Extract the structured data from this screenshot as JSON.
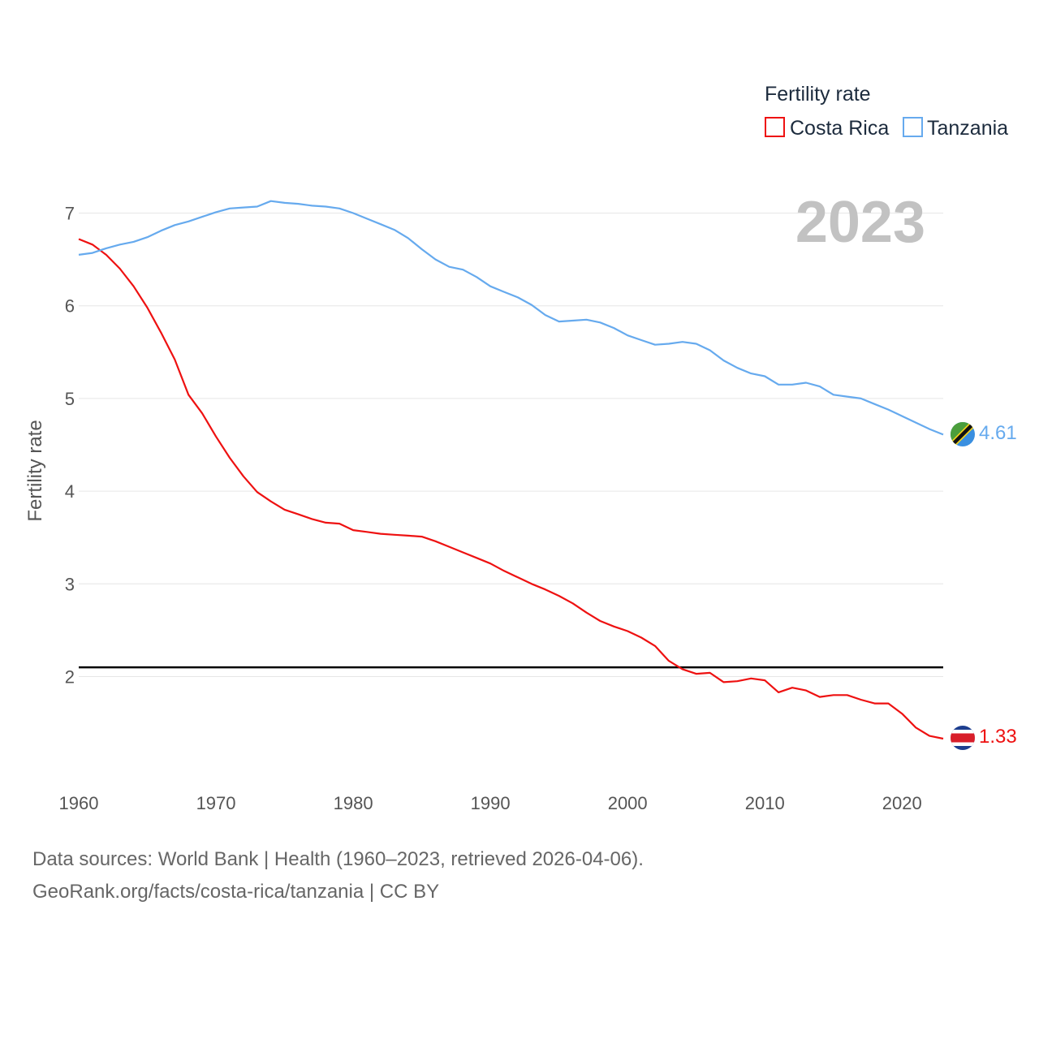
{
  "chart_data": {
    "type": "line",
    "title": "",
    "year_label": "2023",
    "xlabel": "",
    "ylabel": "Fertility rate",
    "xlim": [
      1960,
      2023
    ],
    "ylim": [
      1.0,
      7.4
    ],
    "x_ticks": [
      "1960",
      "1970",
      "1980",
      "1990",
      "2000",
      "2010",
      "2020"
    ],
    "y_ticks": [
      "2",
      "3",
      "4",
      "5",
      "6",
      "7"
    ],
    "grid": true,
    "reference_line": 2.1,
    "legend": {
      "title": "Fertility rate",
      "placement": "top-right"
    },
    "x": [
      1960,
      1961,
      1962,
      1963,
      1964,
      1965,
      1966,
      1967,
      1968,
      1969,
      1970,
      1971,
      1972,
      1973,
      1974,
      1975,
      1976,
      1977,
      1978,
      1979,
      1980,
      1981,
      1982,
      1983,
      1984,
      1985,
      1986,
      1987,
      1988,
      1989,
      1990,
      1991,
      1992,
      1993,
      1994,
      1995,
      1996,
      1997,
      1998,
      1999,
      2000,
      2001,
      2002,
      2003,
      2004,
      2005,
      2006,
      2007,
      2008,
      2009,
      2010,
      2011,
      2012,
      2013,
      2014,
      2015,
      2016,
      2017,
      2018,
      2019,
      2020,
      2021,
      2022,
      2023
    ],
    "series": [
      {
        "name": "Costa Rica",
        "color": "#ee1111",
        "end_label": "1.33",
        "values": [
          6.72,
          6.66,
          6.55,
          6.4,
          6.21,
          5.98,
          5.71,
          5.42,
          5.04,
          4.84,
          4.59,
          4.36,
          4.16,
          3.99,
          3.89,
          3.8,
          3.75,
          3.7,
          3.66,
          3.65,
          3.58,
          3.56,
          3.54,
          3.53,
          3.52,
          3.51,
          3.46,
          3.4,
          3.34,
          3.28,
          3.22,
          3.14,
          3.07,
          3.0,
          2.94,
          2.87,
          2.79,
          2.69,
          2.6,
          2.54,
          2.49,
          2.42,
          2.33,
          2.17,
          2.08,
          2.03,
          2.04,
          1.94,
          1.95,
          1.98,
          1.96,
          1.83,
          1.88,
          1.85,
          1.78,
          1.8,
          1.8,
          1.75,
          1.71,
          1.71,
          1.6,
          1.45,
          1.36,
          1.33
        ]
      },
      {
        "name": "Tanzania",
        "color": "#66aaee",
        "end_label": "4.61",
        "values": [
          6.55,
          6.57,
          6.62,
          6.66,
          6.69,
          6.74,
          6.81,
          6.87,
          6.91,
          6.96,
          7.01,
          7.05,
          7.06,
          7.07,
          7.13,
          7.11,
          7.1,
          7.08,
          7.07,
          7.05,
          7.0,
          6.94,
          6.88,
          6.82,
          6.73,
          6.61,
          6.5,
          6.42,
          6.39,
          6.31,
          6.21,
          6.15,
          6.09,
          6.01,
          5.9,
          5.83,
          5.84,
          5.85,
          5.82,
          5.76,
          5.68,
          5.63,
          5.58,
          5.59,
          5.61,
          5.59,
          5.52,
          5.41,
          5.33,
          5.27,
          5.24,
          5.15,
          5.15,
          5.17,
          5.13,
          5.04,
          5.02,
          5.0,
          4.94,
          4.88,
          4.81,
          4.74,
          4.67,
          4.61
        ]
      }
    ]
  },
  "footer": {
    "sources": "Data sources: World Bank | Health (1960–2023, retrieved 2026-04-06).",
    "credit": "GeoRank.org/facts/costa-rica/tanzania | CC BY"
  }
}
